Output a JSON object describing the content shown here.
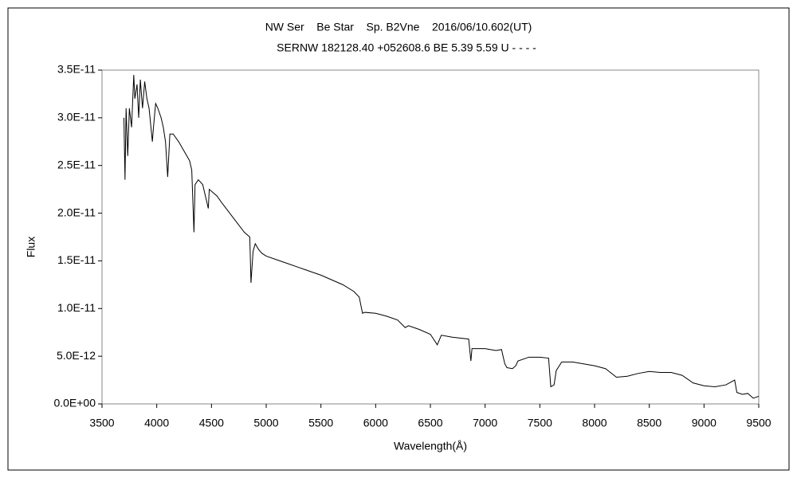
{
  "chart_data": {
    "type": "line",
    "title": "NW Ser    Be Star    Sp. B2Vne    2016/06/10.602(UT)",
    "subtitle": "SERNW 182128.40 +052608.6 BE 5.39 5.59 U - - - -",
    "x_label": "Wavelength(Å)",
    "y_label": "Flux",
    "xlim": [
      3500,
      9500
    ],
    "xticks": [
      3500,
      4000,
      4500,
      5000,
      5500,
      6000,
      6500,
      7000,
      7500,
      8000,
      8500,
      9000,
      9500
    ],
    "ylim": [
      0,
      3.5e-11
    ],
    "yticks": [
      {
        "value": 0,
        "label": "0.0E+00"
      },
      {
        "value": 5e-12,
        "label": "5.0E-12"
      },
      {
        "value": 1e-11,
        "label": "1.0E-11"
      },
      {
        "value": 1.5e-11,
        "label": "1.5E-11"
      },
      {
        "value": 2e-11,
        "label": "2.0E-11"
      },
      {
        "value": 2.5e-11,
        "label": "2.5E-11"
      },
      {
        "value": 3e-11,
        "label": "3.0E-11"
      },
      {
        "value": 3.5e-11,
        "label": "3.5E-11"
      }
    ],
    "grid": false,
    "series": [
      {
        "color": "#000000",
        "x": [
          3700,
          3710,
          3720,
          3735,
          3750,
          3770,
          3790,
          3800,
          3820,
          3835,
          3850,
          3870,
          3890,
          3910,
          3930,
          3960,
          3970,
          3990,
          4010,
          4040,
          4060,
          4080,
          4100,
          4120,
          4150,
          4200,
          4250,
          4300,
          4320,
          4340,
          4350,
          4380,
          4420,
          4471,
          4480,
          4550,
          4600,
          4700,
          4800,
          4850,
          4861,
          4880,
          4900,
          4930,
          4960,
          5000,
          5100,
          5200,
          5300,
          5400,
          5500,
          5600,
          5700,
          5800,
          5850,
          5880,
          5900,
          6000,
          6100,
          6200,
          6270,
          6300,
          6400,
          6500,
          6563,
          6600,
          6700,
          6850,
          6870,
          6880,
          7000,
          7100,
          7150,
          7180,
          7200,
          7250,
          7280,
          7300,
          7400,
          7500,
          7580,
          7600,
          7630,
          7650,
          7700,
          7800,
          7900,
          8000,
          8100,
          8200,
          8300,
          8400,
          8500,
          8600,
          8700,
          8800,
          8900,
          9000,
          9100,
          9200,
          9280,
          9300,
          9350,
          9400,
          9450,
          9500
        ],
        "values": [
          3e-11,
          2.35e-11,
          3.1e-11,
          2.6e-11,
          3.1e-11,
          2.9e-11,
          3.45e-11,
          3.2e-11,
          3.35e-11,
          3e-11,
          3.4e-11,
          3.1e-11,
          3.38e-11,
          3.2e-11,
          3.1e-11,
          2.75e-11,
          2.9e-11,
          3.15e-11,
          3.1e-11,
          3e-11,
          2.9e-11,
          2.75e-11,
          2.38e-11,
          2.83e-11,
          2.83e-11,
          2.75e-11,
          2.65e-11,
          2.55e-11,
          2.45e-11,
          1.8e-11,
          2.3e-11,
          2.35e-11,
          2.3e-11,
          2.05e-11,
          2.25e-11,
          2.18e-11,
          2.1e-11,
          1.95e-11,
          1.8e-11,
          1.75e-11,
          1.27e-11,
          1.6e-11,
          1.68e-11,
          1.62e-11,
          1.58e-11,
          1.55e-11,
          1.51e-11,
          1.47e-11,
          1.43e-11,
          1.39e-11,
          1.35e-11,
          1.3e-11,
          1.25e-11,
          1.18e-11,
          1.12e-11,
          9.5e-12,
          9.6e-12,
          9.5e-12,
          9.2e-12,
          8.8e-12,
          8e-12,
          8.2e-12,
          7.8e-12,
          7.3e-12,
          6.2e-12,
          7.2e-12,
          7e-12,
          6.8e-12,
          4.5e-12,
          5.8e-12,
          5.8e-12,
          5.6e-12,
          5.7e-12,
          4.2e-12,
          3.8e-12,
          3.7e-12,
          4e-12,
          4.5e-12,
          4.9e-12,
          4.9e-12,
          4.8e-12,
          1.8e-12,
          2e-12,
          3.5e-12,
          4.4e-12,
          4.4e-12,
          4.2e-12,
          4e-12,
          3.7e-12,
          2.8e-12,
          2.9e-12,
          3.2e-12,
          3.4e-12,
          3.3e-12,
          3.3e-12,
          3e-12,
          2.2e-12,
          1.9e-12,
          1.8e-12,
          2e-12,
          2.5e-12,
          1.2e-12,
          1e-12,
          1.1e-12,
          6e-13,
          8e-13
        ]
      }
    ]
  }
}
